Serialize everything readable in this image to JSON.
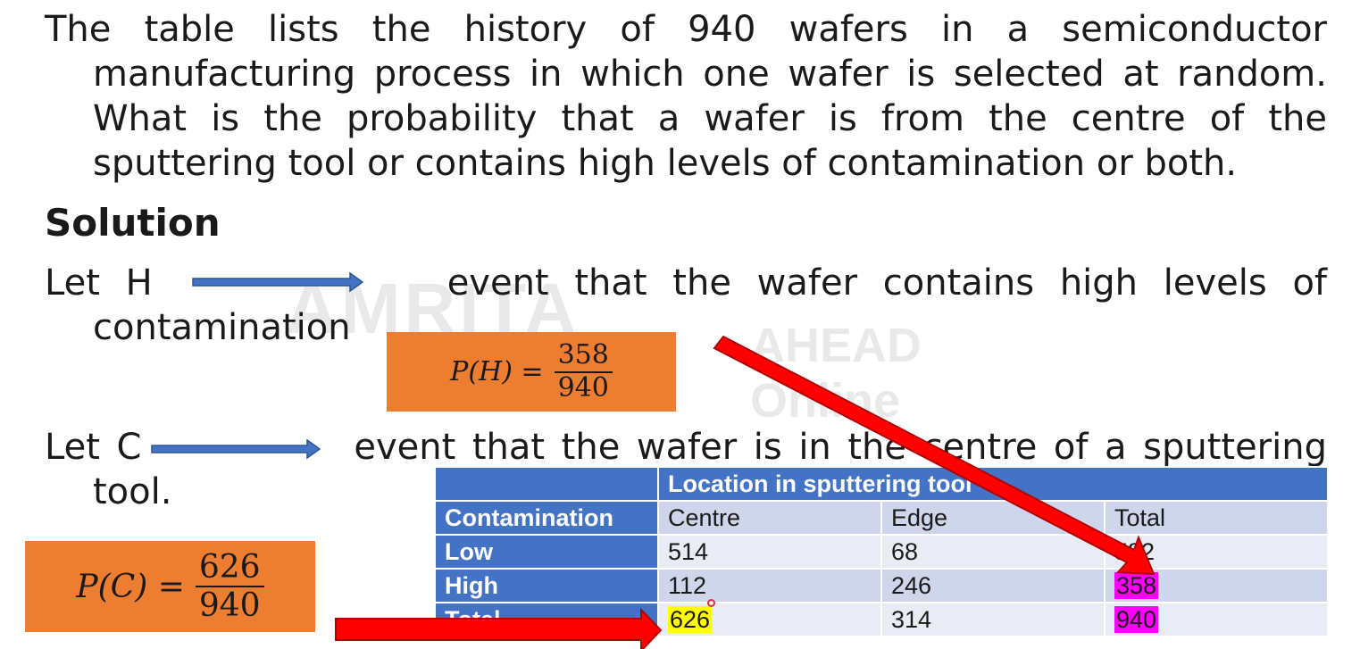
{
  "question": {
    "lines": [
      "The table lists the history of 940 wafers in a semiconductor",
      "manufacturing process in which one wafer is selected at random.",
      "What is the probability that a wafer is from the centre of the",
      "sputtering tool or contains high levels of contamination or both."
    ]
  },
  "solution_heading": "Solution",
  "let_h": {
    "label": "Let H",
    "text": "event that the wafer contains high levels of",
    "continuation": "contamination"
  },
  "let_c": {
    "label": "Let C",
    "text": "event that the wafer is in the centre of a sputtering",
    "continuation": "tool."
  },
  "formula_h": {
    "lhs": "P(H) =",
    "numerator": "358",
    "denominator": "940"
  },
  "formula_c": {
    "lhs": "P(C) =",
    "numerator": "626",
    "denominator": "940"
  },
  "table": {
    "group_header": "Location in sputtering tool",
    "headers": [
      "Contamination",
      "Centre",
      "Edge",
      "Total"
    ],
    "rows": [
      [
        "Low",
        "514",
        "68",
        "582"
      ],
      [
        "High",
        "112",
        "246",
        "358"
      ],
      [
        "Total",
        "626",
        "314",
        "940"
      ]
    ]
  },
  "watermark": "AMRITA AHEAD Online",
  "colors": {
    "formula_box": "#ed7d31",
    "table_header": "#4472c4",
    "arrow_blue": "#4472c4",
    "arrow_red": "#ff0000",
    "highlight_yellow": "#ffff00",
    "highlight_magenta": "#ff00ff"
  }
}
